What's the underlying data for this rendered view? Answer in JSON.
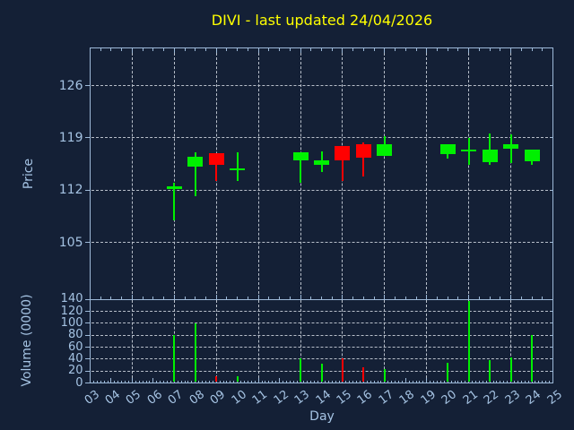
{
  "title": {
    "text": "DIVI - last updated 24/04/2026"
  },
  "colors": {
    "background": "#142036",
    "spine": "#9db9d8",
    "text": "#a5c3e3",
    "grid": "#b8bfca",
    "title": "#ffff00",
    "up": "#00f000",
    "down": "#ff0000"
  },
  "axes": {
    "price": {
      "label": "Price",
      "tick_labels": [
        "126",
        "119",
        "112",
        "105"
      ],
      "tick_values": [
        126,
        119,
        112,
        105
      ]
    },
    "volume": {
      "label": "Volume (0000)",
      "tick_labels": [
        "140",
        "120",
        "100",
        "80",
        "60",
        "40",
        "20",
        "0"
      ],
      "tick_values": [
        140,
        120,
        100,
        80,
        60,
        40,
        20,
        0
      ]
    },
    "x": {
      "label": "Day",
      "tick_labels": [
        "03",
        "04",
        "05",
        "06",
        "07",
        "08",
        "09",
        "10",
        "11",
        "12",
        "13",
        "14",
        "15",
        "16",
        "17",
        "18",
        "19",
        "20",
        "21",
        "22",
        "23",
        "24",
        "25"
      ],
      "tick_values": [
        3,
        4,
        5,
        6,
        7,
        8,
        9,
        10,
        11,
        12,
        13,
        14,
        15,
        16,
        17,
        18,
        19,
        20,
        21,
        22,
        23,
        24,
        25
      ]
    }
  },
  "chart_data": [
    {
      "type": "candlestick",
      "title": "DIVI - last updated 24/04/2026",
      "xlabel": "Day",
      "ylabel": "Price",
      "xlim": [
        3,
        25
      ],
      "ylim": [
        97.4,
        131.1
      ],
      "yticks": [
        105,
        112,
        119,
        126
      ],
      "grid": true,
      "x": [
        7,
        8,
        9,
        10,
        13,
        14,
        15,
        16,
        17,
        20,
        21,
        22,
        23,
        24
      ],
      "series": [
        {
          "name": "open",
          "values": [
            112.2,
            115.2,
            117.0,
            114.7,
            116.0,
            115.4,
            117.9,
            118.1,
            116.6,
            116.8,
            117.3,
            115.7,
            117.5,
            115.9
          ]
        },
        {
          "name": "high",
          "values": [
            113.0,
            117.1,
            117.0,
            117.1,
            117.1,
            117.2,
            117.9,
            118.4,
            119.2,
            118.2,
            119.0,
            119.6,
            119.5,
            117.4
          ]
        },
        {
          "name": "low",
          "values": [
            108.0,
            111.2,
            113.2,
            113.2,
            113.0,
            114.4,
            113.2,
            113.8,
            116.6,
            116.2,
            115.4,
            115.4,
            115.6,
            115.4
          ]
        },
        {
          "name": "close",
          "values": [
            112.5,
            116.5,
            115.4,
            114.9,
            117.1,
            116.0,
            116.0,
            116.3,
            118.1,
            118.2,
            117.4,
            117.4,
            118.1,
            117.4
          ]
        }
      ]
    },
    {
      "type": "bar",
      "xlabel": "Day",
      "ylabel": "Volume (0000)",
      "xlim": [
        3,
        25
      ],
      "ylim": [
        0,
        140.5
      ],
      "yticks": [
        0,
        20,
        40,
        60,
        80,
        100,
        120,
        140
      ],
      "grid": true,
      "x": [
        7,
        8,
        9,
        10,
        13,
        14,
        15,
        16,
        17,
        20,
        21,
        22,
        23,
        24
      ],
      "values": [
        80,
        100,
        11,
        12,
        41,
        33,
        42,
        26,
        23,
        34,
        138,
        38,
        43,
        80
      ]
    }
  ]
}
